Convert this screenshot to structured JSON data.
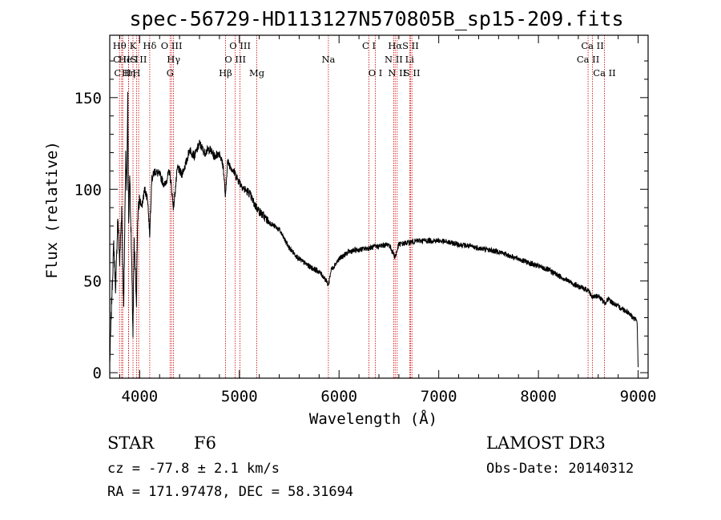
{
  "chart_data": {
    "type": "line",
    "title": "spec-56729-HD113127N570805B_sp15-209.fits",
    "xlabel": "Wavelength (Å)",
    "ylabel": "Flux (relative)",
    "xlim": [
      3700,
      9100
    ],
    "ylim": [
      -3,
      184
    ],
    "xticks": [
      4000,
      5000,
      6000,
      7000,
      8000,
      9000
    ],
    "yticks": [
      0,
      50,
      100,
      150
    ],
    "series": [
      {
        "name": "flux",
        "x": [
          3700,
          3720,
          3740,
          3760,
          3780,
          3800,
          3820,
          3840,
          3860,
          3870,
          3880,
          3890,
          3900,
          3920,
          3933,
          3945,
          3968,
          3980,
          4000,
          4020,
          4050,
          4080,
          4101,
          4120,
          4150,
          4200,
          4250,
          4300,
          4340,
          4380,
          4420,
          4470,
          4500,
          4550,
          4600,
          4650,
          4700,
          4750,
          4800,
          4840,
          4861,
          4880,
          4920,
          4960,
          5000,
          5050,
          5100,
          5150,
          5200,
          5300,
          5400,
          5500,
          5600,
          5700,
          5800,
          5850,
          5893,
          5920,
          6000,
          6100,
          6200,
          6300,
          6400,
          6500,
          6563,
          6600,
          6700,
          6800,
          6900,
          7000,
          7100,
          7200,
          7300,
          7400,
          7500,
          7600,
          7700,
          7800,
          7900,
          8000,
          8100,
          8200,
          8300,
          8400,
          8500,
          8542,
          8600,
          8662,
          8700,
          8800,
          8900,
          8950,
          8990,
          9000
        ],
        "y": [
          5,
          40,
          70,
          45,
          85,
          60,
          90,
          35,
          120,
          100,
          150,
          80,
          110,
          60,
          20,
          70,
          40,
          85,
          95,
          90,
          100,
          95,
          75,
          105,
          110,
          108,
          102,
          110,
          90,
          112,
          108,
          115,
          122,
          118,
          125,
          120,
          122,
          118,
          120,
          112,
          95,
          115,
          112,
          108,
          104,
          100,
          98,
          92,
          88,
          82,
          78,
          68,
          62,
          58,
          55,
          52,
          48,
          56,
          62,
          66,
          67,
          68,
          69,
          70,
          63,
          70,
          71,
          72,
          72,
          72,
          71,
          70,
          69,
          68,
          67,
          66,
          64,
          62,
          60,
          58,
          56,
          53,
          50,
          47,
          45,
          41,
          42,
          38,
          40,
          36,
          33,
          30,
          28,
          3
        ]
      }
    ],
    "lines": [
      {
        "name": "C II",
        "x": 3820,
        "row": 2
      },
      {
        "name": "Hθ",
        "x": 3798,
        "row": 1
      },
      {
        "name": "C II",
        "x": 3830,
        "row": 3
      },
      {
        "name": "He I",
        "x": 3888,
        "row": 2
      },
      {
        "name": "K",
        "x": 3933,
        "row": 1
      },
      {
        "name": "Hη",
        "x": 3889,
        "row": 3
      },
      {
        "name": "S II",
        "x": 3990,
        "row": 2
      },
      {
        "name": "H",
        "x": 3968,
        "row": 3
      },
      {
        "name": "Hδ",
        "x": 4101,
        "row": 1
      },
      {
        "name": "O III",
        "x": 4320,
        "row": 1
      },
      {
        "name": "Hγ",
        "x": 4340,
        "row": 2
      },
      {
        "name": "G",
        "x": 4305,
        "row": 3
      },
      {
        "name": "O III",
        "x": 5007,
        "row": 1
      },
      {
        "name": "O III",
        "x": 4959,
        "row": 2
      },
      {
        "name": "Hβ",
        "x": 4861,
        "row": 3
      },
      {
        "name": "Mg",
        "x": 5175,
        "row": 3
      },
      {
        "name": "Na",
        "x": 5893,
        "row": 2
      },
      {
        "name": "C I",
        "x": 6300,
        "row": 1
      },
      {
        "name": "O I",
        "x": 6364,
        "row": 3
      },
      {
        "name": "Hα",
        "x": 6563,
        "row": 1
      },
      {
        "name": "N II",
        "x": 6548,
        "row": 2
      },
      {
        "name": "N II",
        "x": 6583,
        "row": 3
      },
      {
        "name": "S II",
        "x": 6717,
        "row": 1
      },
      {
        "name": "Li",
        "x": 6708,
        "row": 2
      },
      {
        "name": "S II",
        "x": 6731,
        "row": 3
      },
      {
        "name": "Ca II",
        "x": 8542,
        "row": 1
      },
      {
        "name": "Ca II",
        "x": 8498,
        "row": 2
      },
      {
        "name": "Ca II",
        "x": 8662,
        "row": 3
      }
    ]
  },
  "info": {
    "object_class": "STAR",
    "subclass": "F6",
    "survey": "LAMOST DR3",
    "cz": "cz = -77.8 ± 2.1 km/s",
    "obs_date": "Obs-Date: 20140312",
    "coords": "RA = 171.97478, DEC =  58.31694"
  },
  "colors": {
    "spectrum": "#000000",
    "line_marker": "#cc0000",
    "axes": "#000000"
  }
}
